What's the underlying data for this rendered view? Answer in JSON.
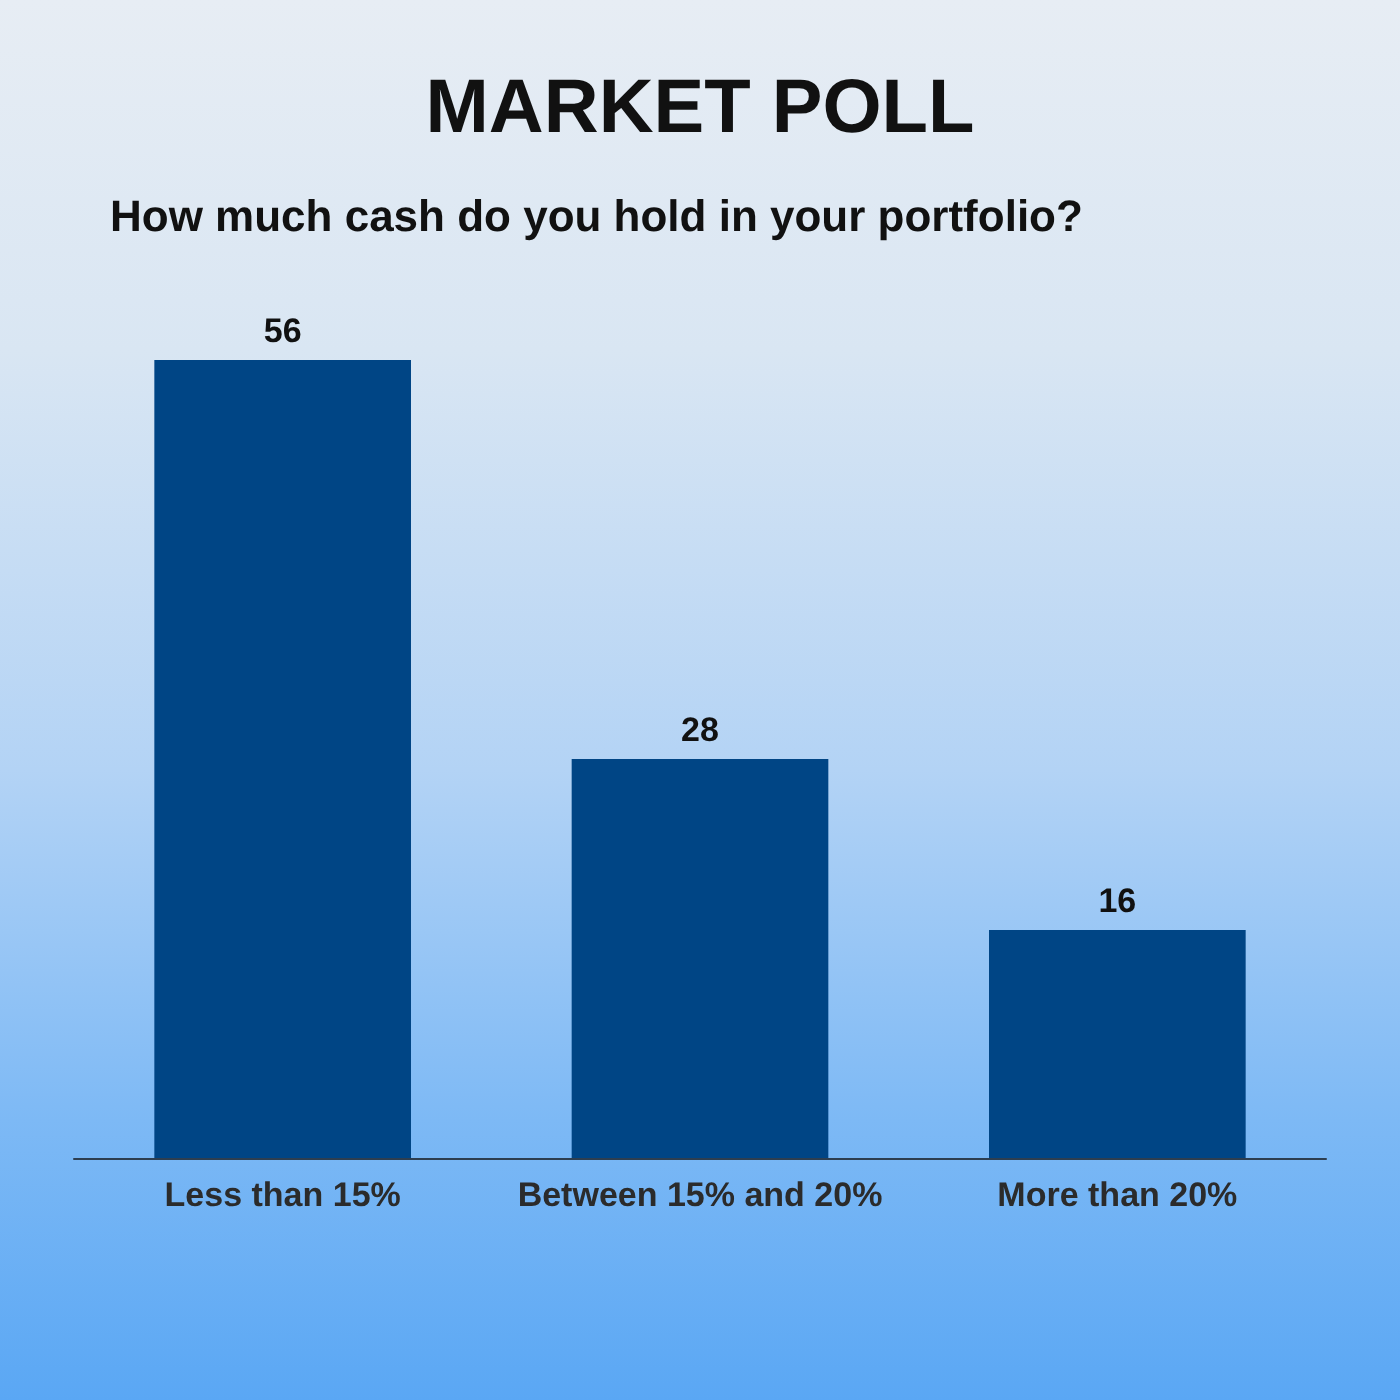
{
  "chart_data": {
    "type": "bar",
    "title": "MARKET POLL",
    "subtitle": "How much cash do you hold in your portfolio?",
    "categories": [
      "Less than 15%",
      "Between 15% and 20%",
      "More than 20%"
    ],
    "values": [
      56,
      28,
      16
    ],
    "color": "#004585",
    "data_labels": true
  }
}
